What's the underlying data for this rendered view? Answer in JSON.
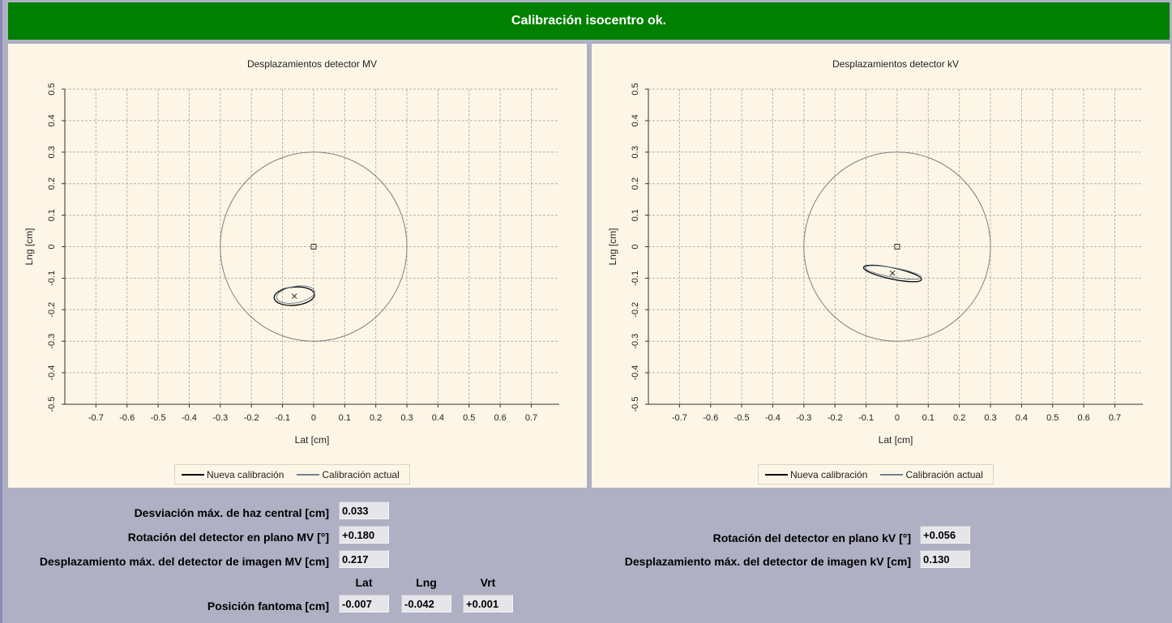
{
  "banner": {
    "text": "Calibración isocentro ok."
  },
  "legend": {
    "new": "Nueva calibración",
    "current": "Calibración actual"
  },
  "colors": {
    "banner": "#008000",
    "new_series": "#000000",
    "current_series": "#6e8294",
    "circle": "#808080"
  },
  "chart_data": [
    {
      "type": "scatter",
      "title": "Desplazamientos detector MV",
      "xlabel": "Lat [cm]",
      "ylabel": "Lng [cm]",
      "xlim": [
        -0.8,
        0.79
      ],
      "ylim": [
        -0.5,
        0.5
      ],
      "xticks": [
        -0.7,
        -0.6,
        -0.5,
        -0.4,
        -0.3,
        -0.2,
        -0.1,
        0,
        0.1,
        0.2,
        0.3,
        0.4,
        0.5,
        0.6,
        0.7
      ],
      "yticks": [
        -0.5,
        -0.4,
        -0.3,
        -0.2,
        -0.1,
        0,
        0.1,
        0.2,
        0.3,
        0.4,
        0.5
      ],
      "grid": true,
      "legend_position": "bottom-center",
      "tolerance_circle_radius": 0.3,
      "center_marker": [
        0,
        0
      ],
      "x_marker": [
        -0.062,
        -0.157
      ],
      "series": [
        {
          "name": "Nueva calibración",
          "shape": "ellipse",
          "center": [
            -0.062,
            -0.157
          ],
          "radius_x": 0.065,
          "radius_y": 0.029,
          "angle_deg": 5
        },
        {
          "name": "Calibración actual",
          "shape": "ellipse",
          "center": [
            -0.058,
            -0.152
          ],
          "radius_x": 0.062,
          "radius_y": 0.026,
          "angle_deg": 10
        }
      ]
    },
    {
      "type": "scatter",
      "title": "Desplazamientos detector kV",
      "xlabel": "Lat [cm]",
      "ylabel": "Lng [cm]",
      "xlim": [
        -0.8,
        0.79
      ],
      "ylim": [
        -0.5,
        0.5
      ],
      "xticks": [
        -0.7,
        -0.6,
        -0.5,
        -0.4,
        -0.3,
        -0.2,
        -0.1,
        0,
        0.1,
        0.2,
        0.3,
        0.4,
        0.5,
        0.6,
        0.7
      ],
      "yticks": [
        -0.5,
        -0.4,
        -0.3,
        -0.2,
        -0.1,
        0,
        0.1,
        0.2,
        0.3,
        0.4,
        0.5
      ],
      "grid": true,
      "legend_position": "bottom-center",
      "tolerance_circle_radius": 0.3,
      "center_marker": [
        0,
        0
      ],
      "x_marker": [
        -0.015,
        -0.084
      ],
      "series": [
        {
          "name": "Nueva calibración",
          "shape": "ellipse",
          "center": [
            -0.015,
            -0.085
          ],
          "radius_x": 0.095,
          "radius_y": 0.018,
          "angle_deg": -12
        },
        {
          "name": "Calibración actual",
          "shape": "ellipse",
          "center": [
            -0.012,
            -0.082
          ],
          "radius_x": 0.092,
          "radius_y": 0.015,
          "angle_deg": -10
        }
      ]
    }
  ],
  "results": {
    "central_beam_dev_label": "Desviación máx. de haz central [cm]",
    "central_beam_dev_value": "0.033",
    "mv_rotation_label": "Rotación del detector en plano MV [°]",
    "mv_rotation_value": "+0.180",
    "mv_disp_label": "Desplazamiento máx. del detector de imagen MV [cm]",
    "mv_disp_value": "0.217",
    "kv_rotation_label": "Rotación del detector en plano kV [°]",
    "kv_rotation_value": "+0.056",
    "kv_disp_label": "Desplazamiento máx. del detector de imagen kV [cm]",
    "kv_disp_value": "0.130",
    "phantom": {
      "label": "Posición fantoma [cm]",
      "col_lat": "Lat",
      "col_lng": "Lng",
      "col_vrt": "Vrt",
      "lat": "-0.007",
      "lng": "-0.042",
      "vrt": "+0.001"
    }
  }
}
